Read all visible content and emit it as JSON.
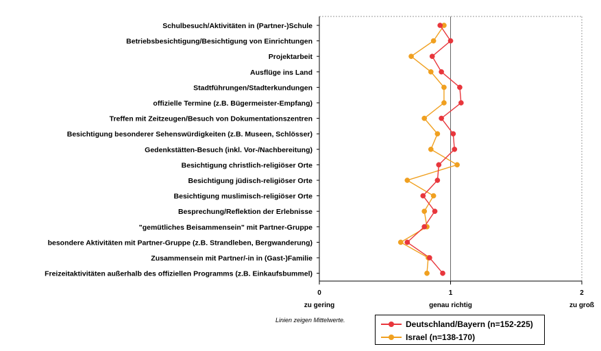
{
  "colors": {
    "de": "#e8363c",
    "il": "#f0a020",
    "frame": "#999999",
    "ref": "#666666"
  },
  "chart_data": {
    "type": "line",
    "orientation": "horizontal",
    "categories": [
      "Schulbesuch/Aktivitäten in (Partner-)Schule",
      "Betriebsbesichtigung/Besichtigung von Einrichtungen",
      "Projektarbeit",
      "Ausflüge ins Land",
      "Stadtführungen/Stadterkundungen",
      "offizielle Termine (z.B. Bügermeister-Empfang)",
      "Treffen mit Zeitzeugen/Besuch von Dokumentationszentren",
      "Besichtigung besonderer Sehenswürdigkeiten (z.B. Museen, Schlösser)",
      "Gedenkstätten-Besuch (inkl. Vor-/Nachbereitung)",
      "Besichtigung christlich-religiöser Orte",
      "Besichtigung jüdisch-religiöser Orte",
      "Besichtigung muslimisch-religiöser Orte",
      "Besprechung/Reflektion der Erlebnisse",
      "\"gemütliches Beisammensein\" mit Partner-Gruppe",
      "besondere Aktivitäten mit Partner-Gruppe (z.B. Strandleben, Bergwanderung)",
      "Zusammensein mit Partner/-in in (Gast-)Familie",
      "Freizeitaktivitäten außerhalb des offiziellen Programms (z.B. Einkaufsbummel)"
    ],
    "series": [
      {
        "name": "Deutschland/Bayern (n=152-225)",
        "color_key": "de",
        "values": [
          0.92,
          1.0,
          0.86,
          0.93,
          1.07,
          1.08,
          0.93,
          1.02,
          1.03,
          0.91,
          0.9,
          0.79,
          0.88,
          0.8,
          0.67,
          0.84,
          0.94
        ]
      },
      {
        "name": "Israel (n=138-170)",
        "color_key": "il",
        "values": [
          0.95,
          0.87,
          0.7,
          0.85,
          0.95,
          0.95,
          0.8,
          0.9,
          0.85,
          1.05,
          0.67,
          0.87,
          0.8,
          0.82,
          0.62,
          0.83,
          0.82
        ]
      }
    ],
    "xlim": [
      0,
      2
    ],
    "x_ticks": [
      "0",
      "1",
      "2"
    ],
    "x_axis_words": [
      "zu gering",
      "genau richtig",
      "zu groß"
    ],
    "reference_line": 1,
    "note": "Linien zeigen Mittelwerte.",
    "legend_position": "bottom-right"
  }
}
